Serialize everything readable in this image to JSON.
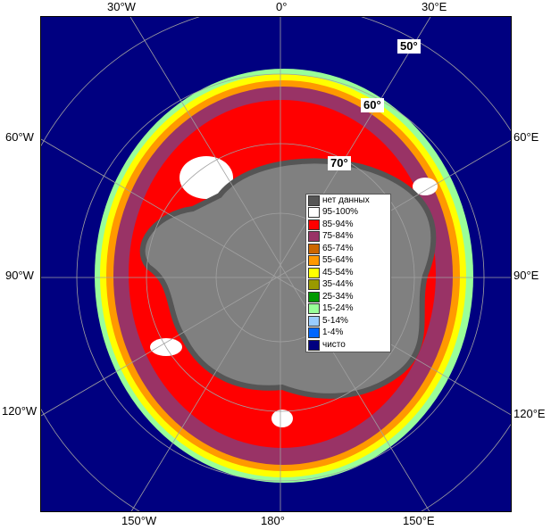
{
  "map": {
    "lon_labels_top": [
      "30°W",
      "0°",
      "30°E"
    ],
    "lon_labels_bottom": [
      "150°W",
      "180°",
      "150°E"
    ],
    "lon_labels_left": [
      "60°W",
      "90°W",
      "120°W"
    ],
    "lon_labels_right": [
      "60°E",
      "90°E",
      "120°E"
    ],
    "lat_labels": [
      "50°",
      "60°",
      "70°"
    ],
    "colors": {
      "ocean": "#000080",
      "land": "#808080",
      "no_data": "#555555"
    }
  },
  "legend": {
    "items": [
      {
        "label": "нет данных",
        "color": "#555555"
      },
      {
        "label": "95-100%",
        "color": "#ffffff"
      },
      {
        "label": "85-94%",
        "color": "#ff0000"
      },
      {
        "label": "75-84%",
        "color": "#993366"
      },
      {
        "label": "65-74%",
        "color": "#cc6600"
      },
      {
        "label": "55-64%",
        "color": "#ff9900"
      },
      {
        "label": "45-54%",
        "color": "#ffff00"
      },
      {
        "label": "35-44%",
        "color": "#999900"
      },
      {
        "label": "25-34%",
        "color": "#009900"
      },
      {
        "label": "15-24%",
        "color": "#99ff99"
      },
      {
        "label": "5-14%",
        "color": "#99ccff"
      },
      {
        "label": "1-4%",
        "color": "#0066ff"
      },
      {
        "label": "чисто",
        "color": "#000080"
      }
    ]
  }
}
